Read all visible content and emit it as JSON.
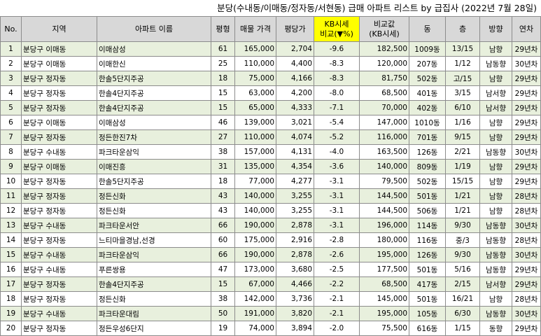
{
  "title": "분당(수내동/이매동/정자동/서현동) 급매 아파트 리스트 by 급집사 (2022년 7월 28일)",
  "headers": {
    "no": "No.",
    "region": "지역",
    "apt": "아파트 이름",
    "size": "평형",
    "price": "매물 가격",
    "per_pyeong": "평당가",
    "kb_compare_line1": "KB시세",
    "kb_compare_line2": "비교(▼%)",
    "compare_line1": "비교값",
    "compare_line2": "(KB시세)",
    "dong": "동",
    "floor": "층",
    "direction": "방향",
    "age": "연차"
  },
  "colors": {
    "header_bg": "#d8d8d8",
    "kb_header_bg": "#ffff00",
    "alt_row_bg": "#e8f0dd",
    "grid": "#8c8c8c"
  },
  "rows": [
    {
      "no": "1",
      "region": "분당구 이매동",
      "apt": "이매삼성",
      "size": "61",
      "price": "165,000",
      "per_pyeong": "2,704",
      "kb": "-9.6",
      "compare": "182,500",
      "dong": "1009동",
      "floor": "13/15",
      "direction": "남향",
      "age": "29년차"
    },
    {
      "no": "2",
      "region": "분당구 이매동",
      "apt": "이매한신",
      "size": "25",
      "price": "110,000",
      "per_pyeong": "4,400",
      "kb": "-8.3",
      "compare": "120,000",
      "dong": "207동",
      "floor": "1/12",
      "direction": "남동향",
      "age": "30년차"
    },
    {
      "no": "3",
      "region": "분당구 정자동",
      "apt": "한솔5단지주공",
      "size": "18",
      "price": "75,000",
      "per_pyeong": "4,166",
      "kb": "-8.3",
      "compare": "81,750",
      "dong": "502동",
      "floor": "고/15",
      "direction": "남향",
      "age": "29년차"
    },
    {
      "no": "4",
      "region": "분당구 정자동",
      "apt": "한솔4단지주공",
      "size": "15",
      "price": "63,000",
      "per_pyeong": "4,200",
      "kb": "-8.0",
      "compare": "68,500",
      "dong": "401동",
      "floor": "3/15",
      "direction": "남서향",
      "age": "29년차"
    },
    {
      "no": "5",
      "region": "분당구 정자동",
      "apt": "한솔4단지주공",
      "size": "15",
      "price": "65,000",
      "per_pyeong": "4,333",
      "kb": "-7.1",
      "compare": "70,000",
      "dong": "402동",
      "floor": "6/10",
      "direction": "남서향",
      "age": "29년차"
    },
    {
      "no": "6",
      "region": "분당구 이매동",
      "apt": "이매삼성",
      "size": "46",
      "price": "139,000",
      "per_pyeong": "3,021",
      "kb": "-5.4",
      "compare": "147,000",
      "dong": "1010동",
      "floor": "1/16",
      "direction": "남향",
      "age": "29년차"
    },
    {
      "no": "7",
      "region": "분당구 정자동",
      "apt": "정든한진7차",
      "size": "27",
      "price": "110,000",
      "per_pyeong": "4,074",
      "kb": "-5.2",
      "compare": "116,000",
      "dong": "701동",
      "floor": "9/15",
      "direction": "남향",
      "age": "29년차"
    },
    {
      "no": "8",
      "region": "분당구 수내동",
      "apt": "파크타운삼익",
      "size": "38",
      "price": "157,000",
      "per_pyeong": "4,131",
      "kb": "-4.0",
      "compare": "163,500",
      "dong": "126동",
      "floor": "2/21",
      "direction": "남동향",
      "age": "30년차"
    },
    {
      "no": "9",
      "region": "분당구 이매동",
      "apt": "이매진흥",
      "size": "31",
      "price": "135,000",
      "per_pyeong": "4,354",
      "kb": "-3.6",
      "compare": "140,000",
      "dong": "809동",
      "floor": "1/19",
      "direction": "남향",
      "age": "29년차"
    },
    {
      "no": "10",
      "region": "분당구 정자동",
      "apt": "한솔5단지주공",
      "size": "18",
      "price": "77,000",
      "per_pyeong": "4,277",
      "kb": "-3.1",
      "compare": "79,500",
      "dong": "502동",
      "floor": "15/15",
      "direction": "남향",
      "age": "29년차"
    },
    {
      "no": "11",
      "region": "분당구 정자동",
      "apt": "정든신화",
      "size": "43",
      "price": "140,000",
      "per_pyeong": "3,255",
      "kb": "-3.1",
      "compare": "144,500",
      "dong": "501동",
      "floor": "1/21",
      "direction": "남향",
      "age": "28년차"
    },
    {
      "no": "12",
      "region": "분당구 정자동",
      "apt": "정든신화",
      "size": "43",
      "price": "140,000",
      "per_pyeong": "3,255",
      "kb": "-3.1",
      "compare": "144,500",
      "dong": "506동",
      "floor": "1/21",
      "direction": "남향",
      "age": "28년차"
    },
    {
      "no": "13",
      "region": "분당구 수내동",
      "apt": "파크타운서안",
      "size": "66",
      "price": "190,000",
      "per_pyeong": "2,878",
      "kb": "-3.1",
      "compare": "196,000",
      "dong": "114동",
      "floor": "9/30",
      "direction": "남동향",
      "age": "30년차"
    },
    {
      "no": "14",
      "region": "분당구 정자동",
      "apt": "느티마을경남,선경",
      "size": "60",
      "price": "175,000",
      "per_pyeong": "2,916",
      "kb": "-2.8",
      "compare": "180,000",
      "dong": "116동",
      "floor": "중/3",
      "direction": "남동향",
      "age": "28년차"
    },
    {
      "no": "15",
      "region": "분당구 수내동",
      "apt": "파크타운삼익",
      "size": "66",
      "price": "190,000",
      "per_pyeong": "2,878",
      "kb": "-2.6",
      "compare": "195,000",
      "dong": "126동",
      "floor": "9/30",
      "direction": "남동향",
      "age": "30년차"
    },
    {
      "no": "16",
      "region": "분당구 수내동",
      "apt": "푸른쌍용",
      "size": "47",
      "price": "173,000",
      "per_pyeong": "3,680",
      "kb": "-2.5",
      "compare": "177,500",
      "dong": "501동",
      "floor": "5/16",
      "direction": "남동향",
      "age": "29년차"
    },
    {
      "no": "17",
      "region": "분당구 정자동",
      "apt": "한솔4단지주공",
      "size": "15",
      "price": "67,000",
      "per_pyeong": "4,466",
      "kb": "-2.2",
      "compare": "68,500",
      "dong": "417동",
      "floor": "2/15",
      "direction": "남서향",
      "age": "29년차"
    },
    {
      "no": "18",
      "region": "분당구 정자동",
      "apt": "정든신화",
      "size": "38",
      "price": "142,000",
      "per_pyeong": "3,736",
      "kb": "-2.1",
      "compare": "145,000",
      "dong": "501동",
      "floor": "16/21",
      "direction": "남향",
      "age": "28년차"
    },
    {
      "no": "19",
      "region": "분당구 수내동",
      "apt": "파크타운대림",
      "size": "50",
      "price": "191,000",
      "per_pyeong": "3,820",
      "kb": "-2.1",
      "compare": "195,000",
      "dong": "105동",
      "floor": "6/30",
      "direction": "남동향",
      "age": "30년차"
    },
    {
      "no": "20",
      "region": "분당구 정자동",
      "apt": "정든우성6단지",
      "size": "19",
      "price": "74,000",
      "per_pyeong": "3,894",
      "kb": "-2.0",
      "compare": "75,500",
      "dong": "616동",
      "floor": "1/15",
      "direction": "동향",
      "age": "29년차"
    }
  ]
}
